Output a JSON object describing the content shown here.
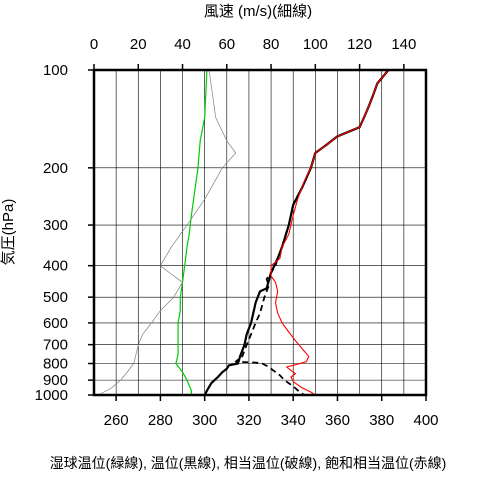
{
  "chart_data": {
    "type": "line",
    "top_axis_label": "風速 (m/s)(細線)",
    "top_axis_ticks": [
      0,
      20,
      40,
      60,
      80,
      100,
      120,
      140
    ],
    "top_axis_range": [
      0,
      150
    ],
    "bottom_axis_ticks": [
      260,
      280,
      300,
      320,
      340,
      360,
      380,
      400
    ],
    "bottom_axis_range": [
      250,
      400
    ],
    "ylabel": "気圧(hPa)",
    "yticks": [
      100,
      200,
      300,
      400,
      500,
      600,
      700,
      800,
      900,
      1000
    ],
    "ylim": [
      1000,
      100
    ],
    "y_scale": "log",
    "grid": true,
    "caption": "湿球温位(緑線), 温位(黒線), 相当温位(破線), 飽和相当温位(赤線)",
    "series": [
      {
        "name": "湿球温位",
        "color": "#00cc00",
        "axis": "bottom",
        "points": [
          [
            301,
            100
          ],
          [
            300,
            140
          ],
          [
            298,
            165
          ],
          [
            297,
            200
          ],
          [
            295,
            250
          ],
          [
            294,
            280
          ],
          [
            293,
            320
          ],
          [
            292,
            350
          ],
          [
            291,
            400
          ],
          [
            290,
            450
          ],
          [
            289,
            500
          ],
          [
            289,
            550
          ],
          [
            288,
            600
          ],
          [
            288,
            650
          ],
          [
            288,
            700
          ],
          [
            288,
            750
          ],
          [
            287,
            800
          ],
          [
            290,
            850
          ],
          [
            292,
            900
          ],
          [
            294,
            970
          ],
          [
            294,
            1000
          ]
        ]
      },
      {
        "name": "温位",
        "color": "#000000",
        "axis": "bottom",
        "points": [
          [
            383,
            100
          ],
          [
            378,
            110
          ],
          [
            376,
            120
          ],
          [
            374,
            130
          ],
          [
            372,
            140
          ],
          [
            370,
            150
          ],
          [
            360,
            160
          ],
          [
            355,
            170
          ],
          [
            350,
            180
          ],
          [
            348,
            200
          ],
          [
            344,
            230
          ],
          [
            340,
            260
          ],
          [
            338,
            300
          ],
          [
            335,
            350
          ],
          [
            333,
            380
          ],
          [
            330,
            420
          ],
          [
            328,
            470
          ],
          [
            325,
            480
          ],
          [
            323,
            520
          ],
          [
            321,
            600
          ],
          [
            319,
            650
          ],
          [
            318,
            700
          ],
          [
            316,
            760
          ],
          [
            315,
            800
          ],
          [
            311,
            810
          ],
          [
            310,
            830
          ],
          [
            308,
            850
          ],
          [
            306,
            880
          ],
          [
            303,
            920
          ],
          [
            301,
            970
          ],
          [
            300,
            1000
          ]
        ]
      },
      {
        "name": "相当温位",
        "color": "#000000",
        "axis": "bottom",
        "points": [
          [
            383,
            100
          ],
          [
            378,
            110
          ],
          [
            376,
            120
          ],
          [
            374,
            130
          ],
          [
            372,
            140
          ],
          [
            370,
            150
          ],
          [
            360,
            160
          ],
          [
            355,
            170
          ],
          [
            350,
            180
          ],
          [
            348,
            200
          ],
          [
            344,
            230
          ],
          [
            340,
            260
          ],
          [
            338,
            300
          ],
          [
            335,
            350
          ],
          [
            333,
            380
          ],
          [
            332,
            400
          ],
          [
            330,
            420
          ],
          [
            328,
            440
          ],
          [
            329,
            460
          ],
          [
            327,
            500
          ],
          [
            325,
            560
          ],
          [
            323,
            600
          ],
          [
            321,
            650
          ],
          [
            319,
            700
          ],
          [
            317,
            760
          ],
          [
            314,
            790
          ],
          [
            323,
            795
          ],
          [
            326,
            800
          ],
          [
            329,
            820
          ],
          [
            331,
            840
          ],
          [
            334,
            870
          ],
          [
            336,
            900
          ],
          [
            340,
            940
          ],
          [
            343,
            980
          ],
          [
            345,
            1000
          ]
        ]
      },
      {
        "name": "飽和相当温位",
        "color": "#ff0000",
        "axis": "bottom",
        "points": [
          [
            383,
            100
          ],
          [
            378,
            110
          ],
          [
            376,
            120
          ],
          [
            374,
            130
          ],
          [
            372,
            140
          ],
          [
            370,
            150
          ],
          [
            360,
            160
          ],
          [
            355,
            170
          ],
          [
            350,
            180
          ],
          [
            348,
            200
          ],
          [
            345,
            220
          ],
          [
            342,
            250
          ],
          [
            340,
            280
          ],
          [
            338,
            320
          ],
          [
            336,
            340
          ],
          [
            335,
            350
          ],
          [
            334,
            380
          ],
          [
            330,
            400
          ],
          [
            330,
            430
          ],
          [
            332,
            450
          ],
          [
            333,
            480
          ],
          [
            332,
            520
          ],
          [
            333,
            560
          ],
          [
            335,
            600
          ],
          [
            338,
            640
          ],
          [
            341,
            680
          ],
          [
            344,
            720
          ],
          [
            347,
            760
          ],
          [
            346,
            790
          ],
          [
            340,
            810
          ],
          [
            337,
            820
          ],
          [
            339,
            840
          ],
          [
            341,
            860
          ],
          [
            339,
            880
          ],
          [
            340,
            910
          ],
          [
            344,
            950
          ],
          [
            348,
            980
          ],
          [
            350,
            1000
          ]
        ]
      },
      {
        "name": "風速",
        "color": "#808080",
        "axis": "top",
        "points": [
          [
            52,
            100
          ],
          [
            55,
            140
          ],
          [
            60,
            165
          ],
          [
            64,
            180
          ],
          [
            58,
            200
          ],
          [
            50,
            250
          ],
          [
            42,
            300
          ],
          [
            35,
            350
          ],
          [
            30,
            400
          ],
          [
            34,
            420
          ],
          [
            40,
            450
          ],
          [
            36,
            500
          ],
          [
            30,
            550
          ],
          [
            26,
            600
          ],
          [
            22,
            650
          ],
          [
            20,
            700
          ],
          [
            18,
            800
          ],
          [
            15,
            850
          ],
          [
            12,
            900
          ],
          [
            8,
            950
          ],
          [
            2,
            1000
          ]
        ]
      }
    ]
  }
}
